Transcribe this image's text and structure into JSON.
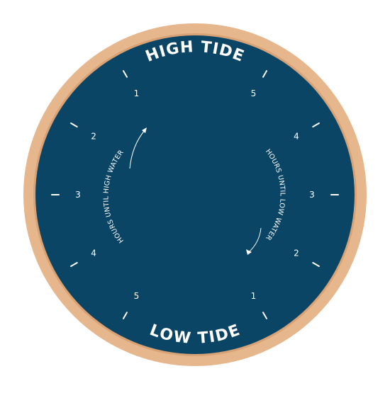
{
  "clock": {
    "title_top": "HIGH TIDE",
    "title_bottom": "LOW TIDE",
    "label_left": "HOURS UNTIL HIGH WATER",
    "label_right": "HOURS UNTIL LOW WATER",
    "numbers_left": [
      "1",
      "2",
      "3",
      "4",
      "5"
    ],
    "numbers_right": [
      "5",
      "4",
      "3",
      "2",
      "1"
    ]
  },
  "colors": {
    "face": "#0b4566",
    "frame": "#e6b68d",
    "frame_edge": "#d9a274",
    "marks": "#ffffff"
  }
}
